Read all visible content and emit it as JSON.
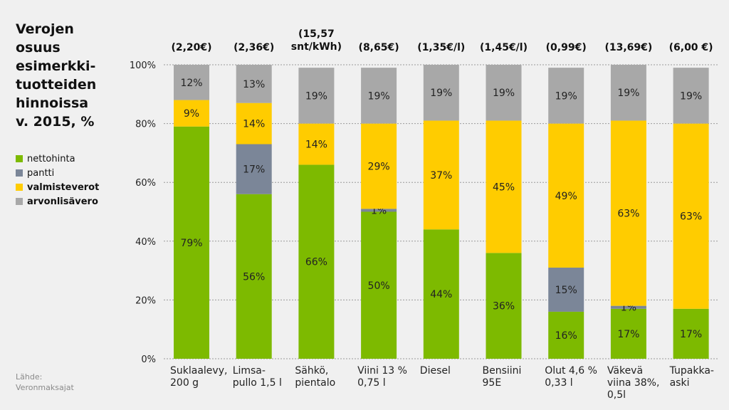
{
  "title": "Verojen\nosuus\nesimerkki-\ntuotteiden\nhinnoissa\nv. 2015, %",
  "legend": [
    {
      "label": "nettohinta",
      "color": "#7dba00",
      "bold": false
    },
    {
      "label": "pantti",
      "color": "#7b8698",
      "bold": false
    },
    {
      "label": "valmisteverot",
      "color": "#ffcc00",
      "bold": true
    },
    {
      "label": "arvonlisävero",
      "color": "#a8a8a8",
      "bold": true
    }
  ],
  "source": {
    "label": "Lähde:",
    "value": "Veronmaksajat"
  },
  "chart_data": {
    "type": "bar",
    "stacked": true,
    "ylim": [
      0,
      100
    ],
    "yticks": [
      "0%",
      "20%",
      "40%",
      "60%",
      "80%",
      "100%"
    ],
    "categories": [
      [
        "Suklaalevy,",
        "200 g"
      ],
      [
        "Limsa-",
        "pullo 1,5 l"
      ],
      [
        "Sähkö,",
        "pientalo"
      ],
      [
        "Viini 13 %",
        "0,75 l"
      ],
      [
        "Diesel"
      ],
      [
        "Bensiini",
        "95E"
      ],
      [
        "Olut 4,6 %",
        "0,33 l"
      ],
      [
        "Väkevä",
        "viina 38%,",
        "0,5l"
      ],
      [
        "Tupakka-",
        "aski"
      ]
    ],
    "prices": [
      [
        "(2,20€)"
      ],
      [
        "(2,36€)"
      ],
      [
        "(15,57",
        "snt/kWh)"
      ],
      [
        "(8,65€)"
      ],
      [
        "(1,35€/l)"
      ],
      [
        "(1,45€/l)"
      ],
      [
        "(0,99€)"
      ],
      [
        "(13,69€)"
      ],
      [
        "(6,00 €)"
      ]
    ],
    "series": [
      {
        "name": "nettohinta",
        "color": "#7dba00",
        "values": [
          79,
          56,
          66,
          50,
          44,
          36,
          16,
          17,
          17
        ],
        "labels": [
          "79%",
          "56%",
          "66%",
          "50%",
          "44%",
          "36%",
          "16%",
          "17%",
          "17%"
        ]
      },
      {
        "name": "pantti",
        "color": "#7b8698",
        "values": [
          0,
          17,
          0,
          1,
          0,
          0,
          15,
          1,
          0
        ],
        "labels": [
          "",
          "17%",
          "",
          "1%",
          "",
          "",
          "15%",
          "1%",
          ""
        ]
      },
      {
        "name": "valmisteverot",
        "color": "#ffcc00",
        "values": [
          9,
          14,
          14,
          29,
          37,
          45,
          49,
          63,
          63
        ],
        "labels": [
          "9%",
          "14%",
          "14%",
          "29%",
          "37%",
          "45%",
          "49%",
          "63%",
          "63%"
        ]
      },
      {
        "name": "arvonlisävero",
        "color": "#a8a8a8",
        "values": [
          12,
          13,
          19,
          19,
          19,
          19,
          19,
          19,
          19
        ],
        "labels": [
          "12%",
          "13%",
          "19%",
          "19%",
          "19%",
          "19%",
          "19%",
          "19%",
          "19%"
        ]
      }
    ]
  }
}
